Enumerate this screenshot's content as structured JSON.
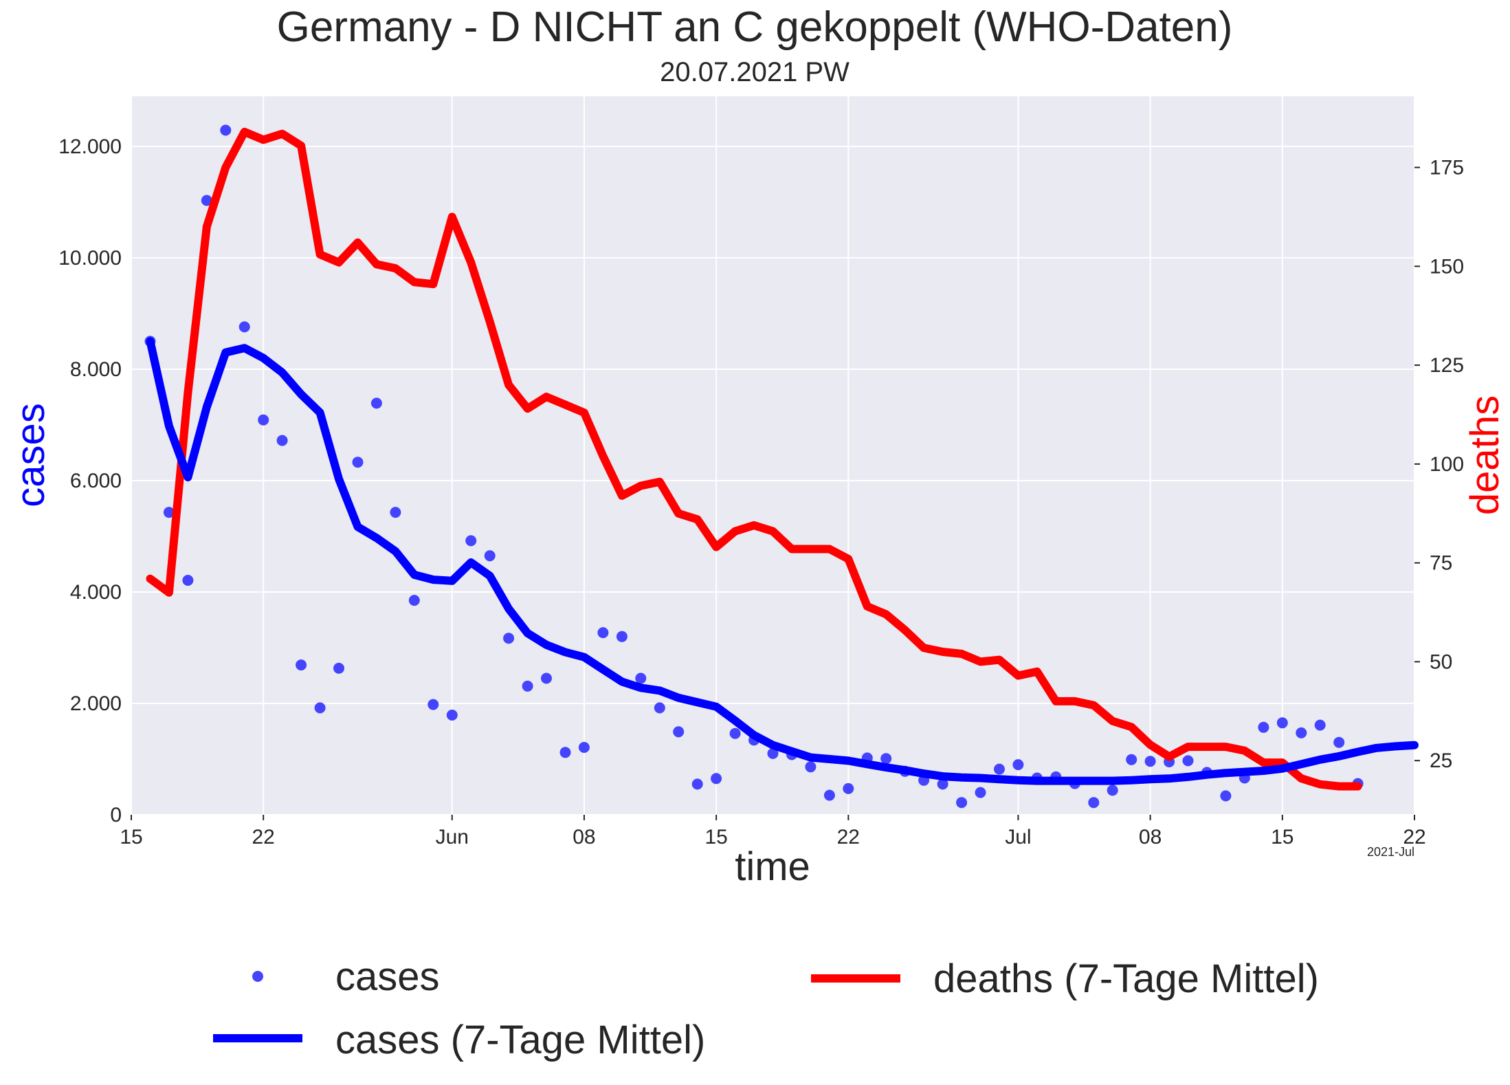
{
  "chart_data": {
    "type": "line",
    "title": "Germany - D NICHT an C gekoppelt  (WHO-Daten)",
    "subtitle": "20.07.2021 PW",
    "xlabel": "time",
    "ylabel_left": "cases",
    "ylabel_right": "deaths",
    "x_note": "2021-Jul",
    "x_start": "2021-05-16",
    "x_range": [
      "2021-05-15",
      "2021-07-22"
    ],
    "ylim_left": [
      0,
      12900
    ],
    "ylim_right": [
      11.3,
      193
    ],
    "grid": true,
    "legend_position": "bottom",
    "x_ticks": [
      {
        "date": "2021-05-15",
        "label": "15"
      },
      {
        "date": "2021-05-22",
        "label": "22"
      },
      {
        "date": "2021-06-01",
        "label": "Jun"
      },
      {
        "date": "2021-06-08",
        "label": "08"
      },
      {
        "date": "2021-06-15",
        "label": "15"
      },
      {
        "date": "2021-06-22",
        "label": "22"
      },
      {
        "date": "2021-07-01",
        "label": "Jul"
      },
      {
        "date": "2021-07-08",
        "label": "08"
      },
      {
        "date": "2021-07-15",
        "label": "15"
      },
      {
        "date": "2021-07-22",
        "label": "22"
      }
    ],
    "y_ticks_left": [
      {
        "value": 0,
        "label": "0"
      },
      {
        "value": 2000,
        "label": "2.000"
      },
      {
        "value": 4000,
        "label": "4.000"
      },
      {
        "value": 6000,
        "label": "6.000"
      },
      {
        "value": 8000,
        "label": "8.000"
      },
      {
        "value": 10000,
        "label": "10.000"
      },
      {
        "value": 12000,
        "label": "12.000"
      }
    ],
    "y_ticks_right": [
      {
        "value": 25,
        "label": "25"
      },
      {
        "value": 50,
        "label": "50"
      },
      {
        "value": 75,
        "label": "75"
      },
      {
        "value": 100,
        "label": "100"
      },
      {
        "value": 125,
        "label": "125"
      },
      {
        "value": 150,
        "label": "150"
      },
      {
        "value": 175,
        "label": "175"
      }
    ],
    "series": [
      {
        "name": "cases",
        "kind": "scatter",
        "axis": "left",
        "color": "#4444ff",
        "values": [
          8500,
          5430,
          4210,
          11030,
          12290,
          8760,
          7090,
          6720,
          2690,
          1920,
          2630,
          6330,
          7390,
          5430,
          3850,
          1980,
          1790,
          4920,
          4650,
          3170,
          2310,
          2450,
          1120,
          1210,
          3270,
          3200,
          2450,
          1920,
          1490,
          550,
          650,
          1460,
          1340,
          1100,
          1080,
          860,
          350,
          470,
          1020,
          1010,
          780,
          620,
          550,
          220,
          400,
          820,
          900,
          660,
          680,
          560,
          220,
          440,
          990,
          960,
          950,
          970,
          760,
          340,
          660,
          1570,
          1650,
          1470,
          1610,
          1300,
          560
        ]
      },
      {
        "name": "cases (7-Tage Mittel)",
        "kind": "line",
        "axis": "left",
        "color": "#0000ff",
        "values": [
          8500,
          6980,
          6060,
          7320,
          8300,
          8380,
          8200,
          7940,
          7550,
          7220,
          6030,
          5170,
          4970,
          4730,
          4310,
          4220,
          4200,
          4530,
          4290,
          3700,
          3260,
          3050,
          2920,
          2830,
          2610,
          2390,
          2280,
          2230,
          2100,
          2020,
          1940,
          1690,
          1430,
          1250,
          1140,
          1030,
          1000,
          970,
          910,
          850,
          800,
          740,
          690,
          670,
          660,
          640,
          620,
          610,
          610,
          610,
          610,
          610,
          620,
          640,
          650,
          680,
          720,
          750,
          770,
          790,
          830,
          910,
          990,
          1050,
          1130,
          1200,
          1230,
          1250
        ]
      },
      {
        "name": "deaths (7-Tage Mittel)",
        "kind": "line",
        "axis": "right",
        "color": "#ff0000",
        "values": [
          71,
          67.5,
          118,
          160,
          175,
          184,
          182,
          183.5,
          180.5,
          153,
          151,
          156,
          150.5,
          149.5,
          146,
          145.5,
          162.5,
          151,
          136,
          120,
          114,
          117,
          115,
          113,
          102,
          92,
          94.5,
          95.5,
          87.5,
          86,
          79,
          83,
          84.5,
          83,
          78.5,
          78.5,
          78.5,
          76,
          64,
          62,
          58,
          53.5,
          52.5,
          52,
          50,
          50.5,
          46.5,
          47.5,
          40,
          40,
          39,
          35,
          33.5,
          29,
          26,
          28.5,
          28.5,
          28.5,
          27.5,
          24.5,
          24.5,
          20.5,
          19,
          18.5,
          18.5
        ]
      }
    ]
  }
}
